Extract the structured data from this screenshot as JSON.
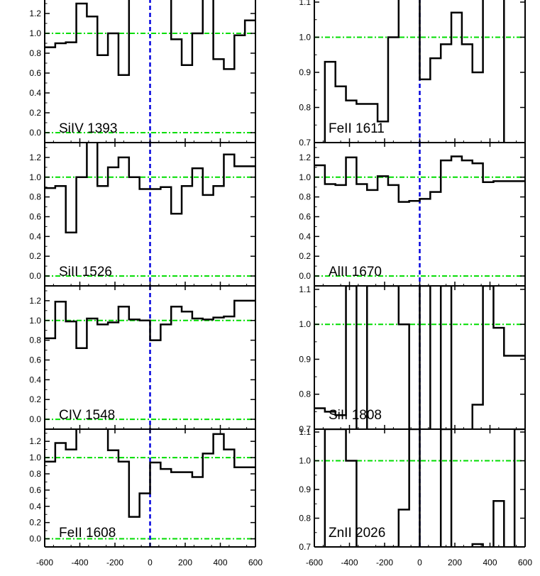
{
  "chart_data": {
    "type": "line",
    "layout": "2 columns x 4 rows of stacked velocity-profile panels",
    "x_ticks": [
      "-600",
      "-400",
      "-200",
      "0",
      "200",
      "400",
      "600"
    ],
    "xlim": [
      -600,
      600
    ],
    "bin_width": 60,
    "reference_line_color": "#00dd00",
    "zero_velocity_line_color": "#0000dd",
    "histogram_color": "#000000",
    "panels": [
      {
        "label": "SiIV 1393",
        "ylim": [
          -0.1,
          1.35
        ],
        "y_ticks": [
          0.0,
          0.2,
          0.4,
          0.6,
          0.8,
          1.0,
          1.2
        ],
        "ref_lines": [
          0.0,
          1.0
        ],
        "x": [
          -600,
          -540,
          -480,
          -420,
          -360,
          -300,
          -240,
          -180,
          -120,
          -60,
          0,
          60,
          120,
          180,
          240,
          300,
          360,
          420,
          480,
          540
        ],
        "values": [
          0.86,
          0.9,
          0.91,
          1.3,
          1.17,
          0.78,
          1.0,
          0.58,
          1.45,
          1.45,
          1.45,
          1.45,
          0.94,
          0.68,
          1.0,
          1.45,
          0.74,
          0.64,
          0.98,
          1.13
        ]
      },
      {
        "label": "FeII 1611",
        "ylim": [
          0.7,
          1.11
        ],
        "y_ticks": [
          0.7,
          0.8,
          0.9,
          1.0,
          1.1
        ],
        "ref_lines": [
          1.0
        ],
        "x": [
          -600,
          -540,
          -480,
          -420,
          -360,
          -300,
          -240,
          -180,
          -120,
          -60,
          0,
          60,
          120,
          180,
          240,
          300,
          360,
          420,
          480,
          540
        ],
        "values": [
          0.69,
          0.93,
          0.86,
          0.82,
          0.81,
          0.81,
          0.76,
          1.0,
          1.11,
          1.11,
          0.88,
          0.94,
          0.98,
          1.07,
          0.98,
          0.9,
          1.11,
          1.11,
          0.69,
          0.69
        ]
      },
      {
        "label": "SiII 1526",
        "ylim": [
          -0.1,
          1.35
        ],
        "y_ticks": [
          0.0,
          0.2,
          0.4,
          0.6,
          0.8,
          1.0,
          1.2
        ],
        "ref_lines": [
          0.0,
          1.0
        ],
        "x": [
          -600,
          -540,
          -480,
          -420,
          -360,
          -300,
          -240,
          -180,
          -120,
          -60,
          0,
          60,
          120,
          180,
          240,
          300,
          360,
          420,
          480,
          540
        ],
        "values": [
          0.89,
          0.91,
          0.44,
          1.0,
          1.36,
          0.91,
          1.1,
          1.2,
          1.0,
          0.88,
          0.88,
          0.9,
          0.63,
          0.91,
          1.09,
          0.82,
          0.91,
          1.23,
          1.11,
          1.11
        ]
      },
      {
        "label": "AlII 1670",
        "ylim": [
          -0.1,
          1.35
        ],
        "y_ticks": [
          0.0,
          0.2,
          0.4,
          0.6,
          0.8,
          1.0,
          1.2
        ],
        "ref_lines": [
          0.0,
          1.0
        ],
        "x": [
          -600,
          -540,
          -480,
          -420,
          -360,
          -300,
          -240,
          -180,
          -120,
          -60,
          0,
          60,
          120,
          180,
          240,
          300,
          360,
          420,
          480,
          540
        ],
        "values": [
          1.12,
          0.93,
          0.92,
          1.2,
          0.93,
          0.87,
          1.01,
          0.92,
          0.75,
          0.76,
          0.78,
          0.85,
          1.17,
          1.21,
          1.17,
          1.14,
          0.95,
          0.96,
          0.96,
          0.96
        ]
      },
      {
        "label": "CIV 1548",
        "ylim": [
          -0.1,
          1.35
        ],
        "y_ticks": [
          0.0,
          0.2,
          0.4,
          0.6,
          0.8,
          1.0,
          1.2
        ],
        "ref_lines": [
          0.0,
          1.0
        ],
        "x": [
          -600,
          -540,
          -480,
          -420,
          -360,
          -300,
          -240,
          -180,
          -120,
          -60,
          0,
          60,
          120,
          180,
          240,
          300,
          360,
          420,
          480,
          540
        ],
        "values": [
          0.82,
          1.19,
          0.99,
          0.72,
          1.02,
          0.96,
          0.98,
          1.14,
          1.01,
          1.0,
          0.8,
          0.96,
          1.14,
          1.09,
          1.02,
          1.01,
          1.03,
          1.04,
          1.2,
          1.2
        ]
      },
      {
        "label": "SiII 1808",
        "ylim": [
          0.7,
          1.11
        ],
        "y_ticks": [
          0.7,
          0.8,
          0.9,
          1.0,
          1.1
        ],
        "ref_lines": [
          1.0
        ],
        "x": [
          -600,
          -540,
          -480,
          -420,
          -360,
          -300,
          -240,
          -180,
          -120,
          -60,
          0,
          60,
          120,
          180,
          240,
          300,
          360,
          420,
          480,
          540
        ],
        "values": [
          0.76,
          0.75,
          0.74,
          1.11,
          0.68,
          1.11,
          1.11,
          1.11,
          1.0,
          0.68,
          1.11,
          0.68,
          1.11,
          0.68,
          0.68,
          0.77,
          1.11,
          0.99,
          0.91,
          0.91
        ]
      },
      {
        "label": "FeII 1608",
        "ylim": [
          -0.1,
          1.35
        ],
        "y_ticks": [
          0.0,
          0.2,
          0.4,
          0.6,
          0.8,
          1.0,
          1.2
        ],
        "ref_lines": [
          0.0,
          1.0
        ],
        "x": [
          -600,
          -540,
          -480,
          -420,
          -360,
          -300,
          -240,
          -180,
          -120,
          -60,
          0,
          60,
          120,
          180,
          240,
          300,
          360,
          420,
          480,
          540
        ],
        "values": [
          0.95,
          1.18,
          1.1,
          1.37,
          1.37,
          1.37,
          1.09,
          0.95,
          0.27,
          0.56,
          0.94,
          0.86,
          0.82,
          0.82,
          0.76,
          1.05,
          1.29,
          1.1,
          0.88,
          0.88
        ]
      },
      {
        "label": "ZnII 2026",
        "ylim": [
          0.7,
          1.11
        ],
        "y_ticks": [
          0.7,
          0.8,
          0.9,
          1.0,
          1.1
        ],
        "ref_lines": [
          1.0
        ],
        "x": [
          -600,
          -540,
          -480,
          -420,
          -360,
          -300,
          -240,
          -180,
          -120,
          -60,
          0,
          60,
          120,
          180,
          240,
          300,
          360,
          420,
          480,
          540
        ],
        "values": [
          0.68,
          1.11,
          1.11,
          1.0,
          0.68,
          0.68,
          0.7,
          0.7,
          0.83,
          1.11,
          0.68,
          0.68,
          1.11,
          0.68,
          0.68,
          0.71,
          0.68,
          0.86,
          0.68,
          1.11
        ]
      }
    ]
  }
}
